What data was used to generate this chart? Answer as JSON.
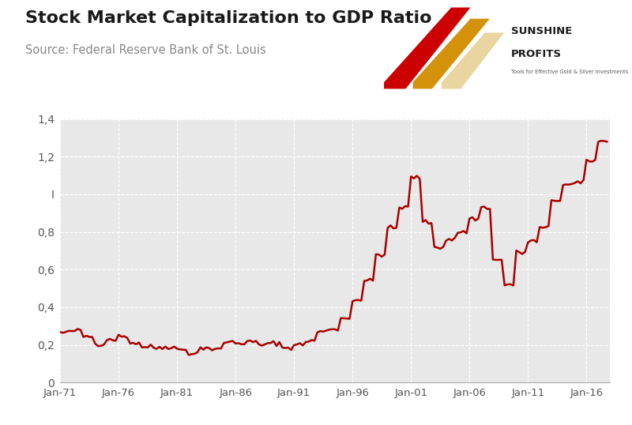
{
  "title": "Stock Market Capitalization to GDP Ratio",
  "source": "Source: Federal Reserve Bank of St. Louis",
  "title_fontsize": 16,
  "source_fontsize": 10.5,
  "line_color": "#AA0000",
  "line_width": 1.8,
  "background_color": "#FFFFFF",
  "plot_bg_color": "#E8E8E8",
  "grid_color": "#FFFFFF",
  "ylim": [
    0,
    1.4
  ],
  "yticks": [
    0,
    0.2,
    0.4,
    0.6,
    0.8,
    1.0,
    1.2,
    1.4
  ],
  "ytick_labels": [
    "0",
    "0,2",
    "0,4",
    "0,6",
    "0,8",
    "I",
    "1,2",
    "1,4"
  ],
  "xtick_years": [
    1971,
    1976,
    1981,
    1986,
    1991,
    1996,
    2001,
    2006,
    2011,
    2016
  ],
  "xtick_labels": [
    "Jan-71",
    "Jan-76",
    "Jan-81",
    "Jan-86",
    "Jan-91",
    "Jan-96",
    "Jan-01",
    "Jan-06",
    "Jan-11",
    "Jan-16"
  ],
  "years": [
    1971,
    1972,
    1973,
    1974,
    1975,
    1976,
    1977,
    1978,
    1979,
    1980,
    1981,
    1982,
    1983,
    1984,
    1985,
    1986,
    1987,
    1988,
    1989,
    1990,
    1991,
    1992,
    1993,
    1994,
    1995,
    1996,
    1997,
    1998,
    1999,
    2000,
    2001,
    2002,
    2003,
    2004,
    2005,
    2006,
    2007,
    2008,
    2009,
    2010,
    2011,
    2012,
    2013,
    2014,
    2015,
    2016,
    2017
  ],
  "values": [
    0.265,
    0.275,
    0.245,
    0.205,
    0.23,
    0.245,
    0.21,
    0.19,
    0.185,
    0.19,
    0.175,
    0.155,
    0.185,
    0.175,
    0.215,
    0.21,
    0.215,
    0.2,
    0.21,
    0.185,
    0.2,
    0.22,
    0.27,
    0.285,
    0.34,
    0.44,
    0.54,
    0.68,
    0.82,
    0.93,
    1.09,
    0.85,
    0.72,
    0.76,
    0.8,
    0.87,
    0.93,
    0.65,
    0.52,
    0.69,
    0.75,
    0.82,
    0.97,
    1.05,
    1.06,
    1.18,
    1.28
  ]
}
